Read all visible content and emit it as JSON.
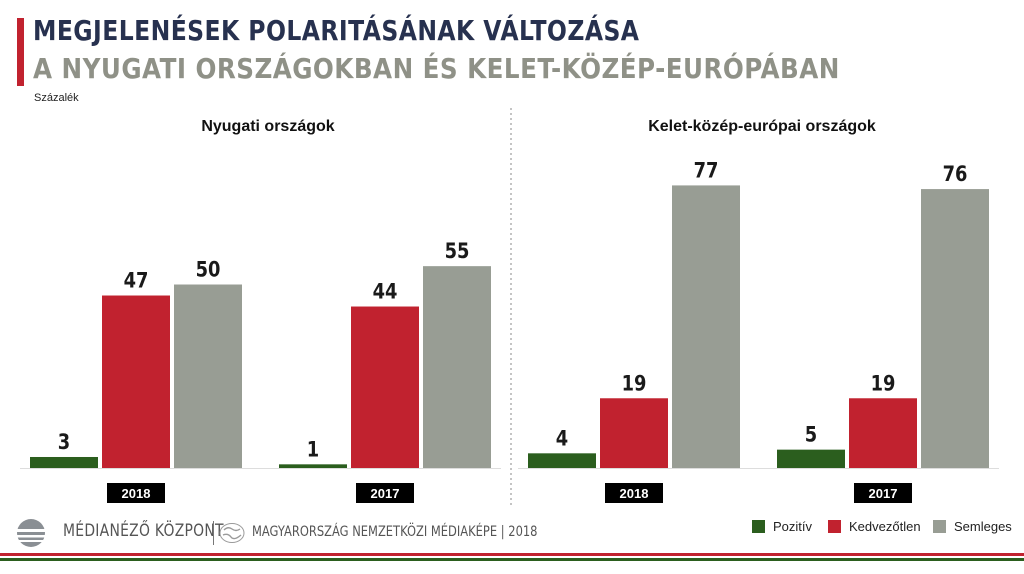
{
  "header": {
    "title_line1": "MEGJELENÉSEK POLARITÁSÁNAK VÁLTOZÁSA",
    "title_line2": "A NYUGATI ORSZÁGOKBAN ÉS KELET-KÖZÉP-EURÓPÁBAN",
    "unit": "Százalék"
  },
  "colors": {
    "pozitiv": "#2b5e1e",
    "kedvezotlen": "#c1222f",
    "semleges": "#989d94",
    "accent": "#c1222f",
    "title": "#27314f"
  },
  "chart_data": [
    {
      "type": "bar",
      "title": "Nyugati országok",
      "categories": [
        "2018",
        "2017"
      ],
      "series": [
        {
          "name": "Pozitív",
          "values": [
            3,
            1
          ]
        },
        {
          "name": "Kedvezőtlen",
          "values": [
            47,
            44
          ]
        },
        {
          "name": "Semleges",
          "values": [
            50,
            55
          ]
        }
      ],
      "ylim": [
        0,
        100
      ],
      "grid": false
    },
    {
      "type": "bar",
      "title": "Kelet-közép-európai országok",
      "categories": [
        "2018",
        "2017"
      ],
      "series": [
        {
          "name": "Pozitív",
          "values": [
            4,
            5
          ]
        },
        {
          "name": "Kedvezőtlen",
          "values": [
            19,
            19
          ]
        },
        {
          "name": "Semleges",
          "values": [
            77,
            76
          ]
        }
      ],
      "ylim": [
        0,
        100
      ],
      "grid": false
    }
  ],
  "legend": {
    "items": [
      "Pozitív",
      "Kedvezőtlen",
      "Semleges"
    ],
    "placement": "bottom-right"
  },
  "footer": {
    "brand": "MÉDIANÉZŐ KÖZPONT",
    "subbrand": "MAGYARORSZÁG NEMZETKÖZI MÉDIAKÉPE | 2018"
  }
}
